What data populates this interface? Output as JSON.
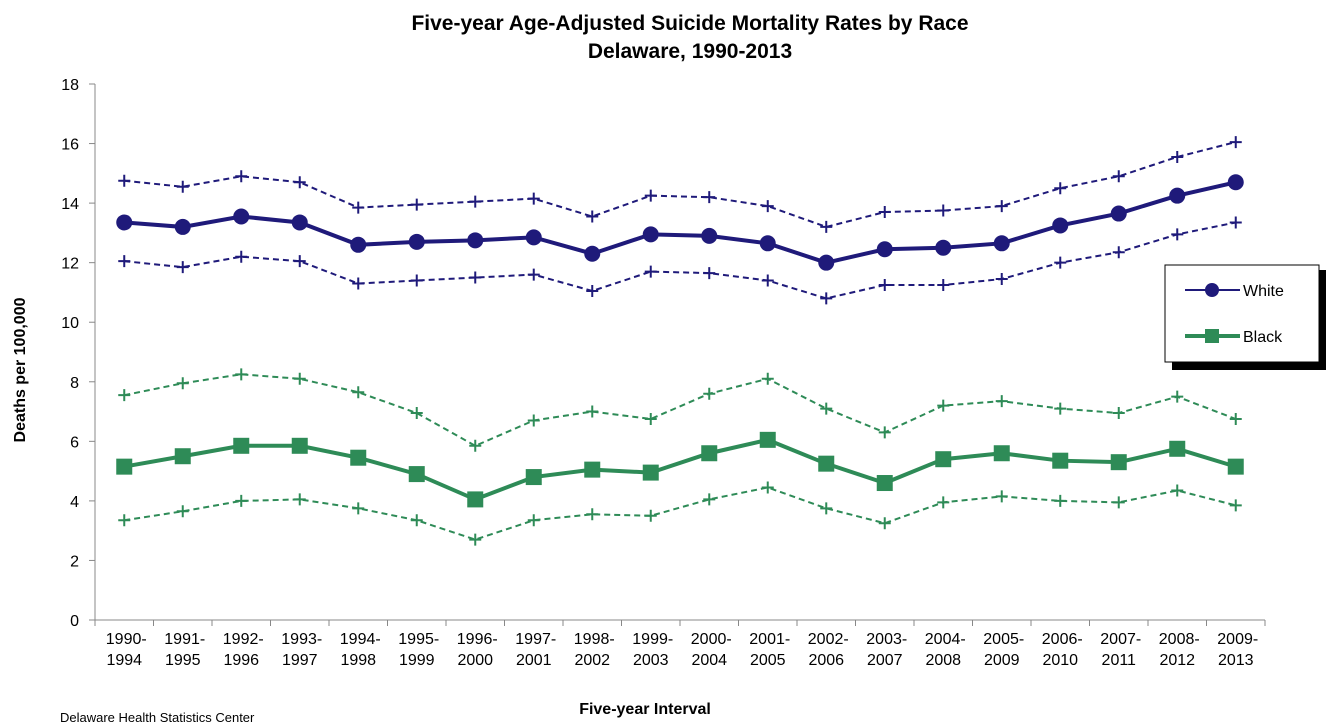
{
  "chart_data": {
    "type": "line",
    "title": "Five-year Age-Adjusted Suicide Mortality Rates by Race",
    "subtitle": "Delaware, 1990-2013",
    "xlabel": "Five-year Interval",
    "ylabel": "Deaths per 100,000",
    "ylim": [
      0,
      18
    ],
    "yticks": [
      "0",
      "2",
      "4",
      "6",
      "8",
      "10",
      "12",
      "14",
      "16",
      "18"
    ],
    "categories": [
      [
        "1990-",
        "1994"
      ],
      [
        "1991-",
        "1995"
      ],
      [
        "1992-",
        "1996"
      ],
      [
        "1993-",
        "1997"
      ],
      [
        "1994-",
        "1998"
      ],
      [
        "1995-",
        "1999"
      ],
      [
        "1996-",
        "2000"
      ],
      [
        "1997-",
        "2001"
      ],
      [
        "1998-",
        "2002"
      ],
      [
        "1999-",
        "2003"
      ],
      [
        "2000-",
        "2004"
      ],
      [
        "2001-",
        "2005"
      ],
      [
        "2002-",
        "2006"
      ],
      [
        "2003-",
        "2007"
      ],
      [
        "2004-",
        "2008"
      ],
      [
        "2005-",
        "2009"
      ],
      [
        "2006-",
        "2010"
      ],
      [
        "2007-",
        "2011"
      ],
      [
        "2008-",
        "2012"
      ],
      [
        "2009-",
        "2013"
      ]
    ],
    "grid": false,
    "legend_position": "right",
    "series": [
      {
        "name": "White",
        "color": "#1f1a7a",
        "marker": "circle",
        "values": [
          13.35,
          13.2,
          13.55,
          13.35,
          12.6,
          12.7,
          12.75,
          12.85,
          12.3,
          12.95,
          12.9,
          12.65,
          12.0,
          12.45,
          12.5,
          12.65,
          13.25,
          13.65,
          14.25,
          14.7
        ],
        "upper": [
          14.75,
          14.55,
          14.9,
          14.7,
          13.85,
          13.95,
          14.05,
          14.15,
          13.55,
          14.25,
          14.2,
          13.9,
          13.2,
          13.7,
          13.75,
          13.9,
          14.5,
          14.9,
          15.55,
          16.05
        ],
        "lower": [
          12.05,
          11.85,
          12.2,
          12.05,
          11.3,
          11.4,
          11.5,
          11.6,
          11.05,
          11.7,
          11.65,
          11.4,
          10.8,
          11.25,
          11.25,
          11.45,
          12.0,
          12.35,
          12.95,
          13.35
        ]
      },
      {
        "name": "Black",
        "color": "#2e8b57",
        "marker": "square",
        "values": [
          5.15,
          5.5,
          5.85,
          5.85,
          5.45,
          4.9,
          4.05,
          4.8,
          5.05,
          4.95,
          5.6,
          6.05,
          5.25,
          4.6,
          5.4,
          5.6,
          5.35,
          5.3,
          5.75,
          5.15
        ],
        "upper": [
          7.55,
          7.95,
          8.25,
          8.1,
          7.65,
          6.95,
          5.85,
          6.7,
          7.0,
          6.75,
          7.6,
          8.1,
          7.1,
          6.3,
          7.2,
          7.35,
          7.1,
          6.95,
          7.5,
          6.75
        ],
        "lower": [
          3.35,
          3.65,
          4.0,
          4.05,
          3.75,
          3.35,
          2.7,
          3.35,
          3.55,
          3.5,
          4.05,
          4.45,
          3.75,
          3.25,
          3.95,
          4.15,
          4.0,
          3.95,
          4.35,
          3.85
        ]
      }
    ]
  },
  "source_text": "Delaware Health Statistics Center"
}
